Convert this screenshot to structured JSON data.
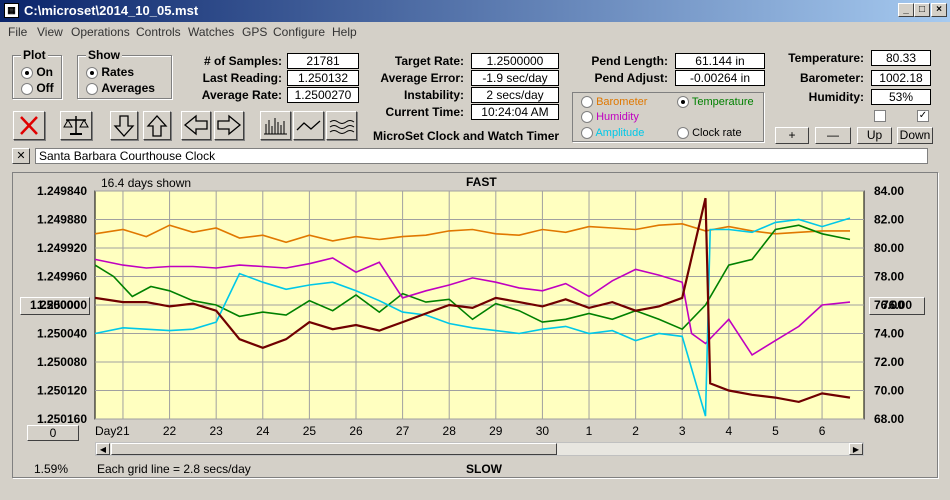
{
  "window": {
    "title": "C:\\microset\\2014_10_05.mst",
    "app_icon": "calculator-icon"
  },
  "menu": [
    "File",
    "View",
    "Operations",
    "Controls",
    "Watches",
    "GPS",
    "Configure",
    "Help"
  ],
  "plot_group": {
    "title": "Plot",
    "on_label": "On",
    "off_label": "Off",
    "selected": "On"
  },
  "show_group": {
    "title": "Show",
    "rates_label": "Rates",
    "averages_label": "Averages",
    "selected": "Rates"
  },
  "stats": {
    "samples_label": "# of Samples:",
    "samples": "21781",
    "last_reading_label": "Last Reading:",
    "last_reading": "1.250132",
    "average_rate_label": "Average Rate:",
    "average_rate": "1.2500270",
    "target_rate_label": "Target Rate:",
    "target_rate": "1.2500000",
    "average_error_label": "Average Error:",
    "average_error": "-1.9 sec/day",
    "instability_label": "Instability:",
    "instability": "2 secs/day",
    "current_time_label": "Current Time:",
    "current_time": "10:24:04 AM",
    "pend_length_label": "Pend Length:",
    "pend_length": "61.144 in",
    "pend_adjust_label": "Pend Adjust:",
    "pend_adjust": "-0.00264 in",
    "temperature_label": "Temperature:",
    "temperature": "80.33",
    "barometer_label": "Barometer:",
    "barometer": "1002.18",
    "humidity_label": "Humidity:",
    "humidity": "53%"
  },
  "app_name": "MicroSet Clock and Watch Timer",
  "sensor_options": [
    {
      "label": "Barometer",
      "color": "#e07800",
      "selected": false
    },
    {
      "label": "Temperature",
      "color": "#008000",
      "selected": true
    },
    {
      "label": "Humidity",
      "color": "#c000c0",
      "selected": false
    },
    {
      "label": "Amplitude",
      "color": "#00c8e8",
      "selected": false
    },
    {
      "label": "Clock rate",
      "color": "#000000",
      "selected": false
    }
  ],
  "scale_buttons": {
    "plus": "+",
    "minus": "—",
    "up": "Up",
    "down": "Down"
  },
  "checkboxes": {
    "first": "",
    "second": "✓"
  },
  "clock_name": "Santa Barbara Courthouse Clock",
  "close_label": "✕",
  "chart_header": {
    "days_shown": "16.4 days shown",
    "fast": "FAST",
    "slow": "SLOW",
    "percent": "1.59%",
    "grid_note": "Each grid line = 2.8 secs/day",
    "left_value_button": "1.250000",
    "right_value_button": "76.00",
    "offset_button": "0"
  },
  "chart_data": {
    "type": "line",
    "xlabel": "Day:",
    "x_ticks": [
      "21",
      "22",
      "23",
      "24",
      "25",
      "26",
      "27",
      "28",
      "29",
      "30",
      "1",
      "2",
      "3",
      "4",
      "5",
      "6"
    ],
    "y_left_ticks": [
      "1.249840",
      "1.249880",
      "1.249920",
      "1.249960",
      "1.250000",
      "1.250040",
      "1.250080",
      "1.250120",
      "1.250160"
    ],
    "y_right_ticks": [
      "84.00",
      "82.00",
      "80.00",
      "78.00",
      "76.00",
      "74.00",
      "72.00",
      "70.00",
      "68.00"
    ],
    "ylim_left": [
      1.24984,
      1.25016
    ],
    "ylim_right": [
      68,
      84
    ],
    "series": [
      {
        "color": "#e07800",
        "points": [
          [
            20.4,
            81.0
          ],
          [
            21,
            81.3
          ],
          [
            21.5,
            80.8
          ],
          [
            22,
            81.6
          ],
          [
            22.5,
            81.1
          ],
          [
            23,
            81.4
          ],
          [
            23.5,
            80.7
          ],
          [
            24,
            80.9
          ],
          [
            24.5,
            80.4
          ],
          [
            25,
            80.9
          ],
          [
            25.5,
            80.5
          ],
          [
            26,
            80.8
          ],
          [
            26.5,
            80.6
          ],
          [
            27,
            80.8
          ],
          [
            27.5,
            80.9
          ],
          [
            28,
            81.2
          ],
          [
            28.5,
            81.3
          ],
          [
            29,
            81.0
          ],
          [
            29.5,
            80.9
          ],
          [
            30,
            81.3
          ],
          [
            30.5,
            81.1
          ],
          [
            31,
            81.5
          ],
          [
            31.5,
            81.4
          ],
          [
            32,
            81.3
          ],
          [
            32.5,
            81.6
          ],
          [
            33,
            81.7
          ],
          [
            33.5,
            81.2
          ],
          [
            34,
            81.5
          ],
          [
            34.5,
            81.2
          ],
          [
            35,
            81.0
          ],
          [
            35.5,
            81.1
          ],
          [
            36,
            81.2
          ],
          [
            36.6,
            81.2
          ]
        ]
      },
      {
        "color": "#008000",
        "points": [
          [
            20.4,
            78.8
          ],
          [
            20.8,
            78.0
          ],
          [
            21.2,
            76.6
          ],
          [
            21.6,
            77.3
          ],
          [
            22,
            77.0
          ],
          [
            22.5,
            76.3
          ],
          [
            23,
            76.0
          ],
          [
            23.5,
            75.2
          ],
          [
            24,
            75.5
          ],
          [
            24.5,
            75.3
          ],
          [
            25,
            76.3
          ],
          [
            25.5,
            75.6
          ],
          [
            26,
            76.7
          ],
          [
            26.5,
            75.5
          ],
          [
            27,
            76.8
          ],
          [
            27.5,
            76.2
          ],
          [
            28,
            76.4
          ],
          [
            28.5,
            75.0
          ],
          [
            29,
            76.1
          ],
          [
            29.5,
            75.6
          ],
          [
            30,
            74.8
          ],
          [
            30.5,
            75.0
          ],
          [
            31,
            75.4
          ],
          [
            31.5,
            75.0
          ],
          [
            32,
            75.6
          ],
          [
            32.5,
            75.0
          ],
          [
            33,
            74.3
          ],
          [
            33.5,
            76.0
          ],
          [
            34,
            78.8
          ],
          [
            34.5,
            79.2
          ],
          [
            35,
            81.3
          ],
          [
            35.5,
            81.6
          ],
          [
            36,
            81.0
          ],
          [
            36.6,
            80.6
          ]
        ]
      },
      {
        "color": "#c000c0",
        "points": [
          [
            20.4,
            79.2
          ],
          [
            21,
            78.8
          ],
          [
            21.5,
            78.6
          ],
          [
            22,
            78.7
          ],
          [
            22.5,
            78.7
          ],
          [
            23,
            78.6
          ],
          [
            23.5,
            78.8
          ],
          [
            24,
            78.7
          ],
          [
            24.5,
            78.6
          ],
          [
            25,
            78.9
          ],
          [
            25.5,
            79.3
          ],
          [
            26,
            78.3
          ],
          [
            26.5,
            79.0
          ],
          [
            27,
            76.5
          ],
          [
            27.5,
            77.0
          ],
          [
            28,
            77.4
          ],
          [
            28.5,
            77.9
          ],
          [
            29,
            77.6
          ],
          [
            29.5,
            77.2
          ],
          [
            30,
            77.0
          ],
          [
            30.5,
            77.5
          ],
          [
            31,
            76.6
          ],
          [
            31.5,
            77.7
          ],
          [
            32,
            78.5
          ],
          [
            32.5,
            78.1
          ],
          [
            33,
            77.6
          ],
          [
            33.2,
            74.0
          ],
          [
            33.5,
            73.3
          ],
          [
            34,
            75.0
          ],
          [
            34.5,
            72.5
          ],
          [
            35,
            73.5
          ],
          [
            35.5,
            74.5
          ],
          [
            36,
            76.0
          ],
          [
            36.6,
            76.2
          ]
        ]
      },
      {
        "color": "#00c8e8",
        "points": [
          [
            20.4,
            74.0
          ],
          [
            21,
            74.4
          ],
          [
            21.5,
            74.3
          ],
          [
            22,
            74.2
          ],
          [
            22.5,
            74.3
          ],
          [
            23,
            74.8
          ],
          [
            23.5,
            78.2
          ],
          [
            24,
            77.6
          ],
          [
            24.5,
            77.1
          ],
          [
            25,
            77.4
          ],
          [
            25.5,
            77.6
          ],
          [
            26,
            77.0
          ],
          [
            26.5,
            76.3
          ],
          [
            27,
            75.5
          ],
          [
            27.5,
            75.3
          ],
          [
            28,
            74.7
          ],
          [
            28.5,
            74.4
          ],
          [
            29,
            74.2
          ],
          [
            29.5,
            74.0
          ],
          [
            30,
            74.3
          ],
          [
            30.5,
            74.5
          ],
          [
            31,
            74.0
          ],
          [
            31.5,
            74.2
          ],
          [
            32,
            73.5
          ],
          [
            32.5,
            74.0
          ],
          [
            33,
            73.8
          ],
          [
            33.5,
            68.2
          ],
          [
            33.6,
            81.3
          ],
          [
            34,
            81.3
          ],
          [
            34.5,
            81.1
          ],
          [
            35,
            81.8
          ],
          [
            35.5,
            82.0
          ],
          [
            36,
            81.5
          ],
          [
            36.6,
            82.1
          ]
        ]
      },
      {
        "color": "#700000",
        "points": [
          [
            20.4,
            76.5
          ],
          [
            21,
            76.2
          ],
          [
            21.5,
            76.2
          ],
          [
            22,
            75.9
          ],
          [
            22.5,
            76.1
          ],
          [
            23,
            75.6
          ],
          [
            23.5,
            73.6
          ],
          [
            24,
            73.0
          ],
          [
            24.5,
            73.6
          ],
          [
            25,
            74.8
          ],
          [
            25.5,
            74.3
          ],
          [
            26,
            74.6
          ],
          [
            26.5,
            74.2
          ],
          [
            27,
            74.8
          ],
          [
            27.5,
            75.4
          ],
          [
            28,
            76.0
          ],
          [
            28.5,
            75.8
          ],
          [
            29,
            76.5
          ],
          [
            29.5,
            76.2
          ],
          [
            30,
            75.9
          ],
          [
            30.5,
            76.4
          ],
          [
            31,
            75.8
          ],
          [
            31.5,
            76.2
          ],
          [
            32,
            75.6
          ],
          [
            32.5,
            75.9
          ],
          [
            33,
            76.5
          ],
          [
            33.5,
            83.5
          ],
          [
            33.6,
            70.5
          ],
          [
            34,
            70.0
          ],
          [
            34.5,
            69.7
          ],
          [
            35,
            69.5
          ],
          [
            35.5,
            69.2
          ],
          [
            36,
            69.8
          ],
          [
            36.6,
            69.5
          ]
        ]
      }
    ],
    "x_range": [
      20.4,
      36.9
    ],
    "grid": true
  }
}
